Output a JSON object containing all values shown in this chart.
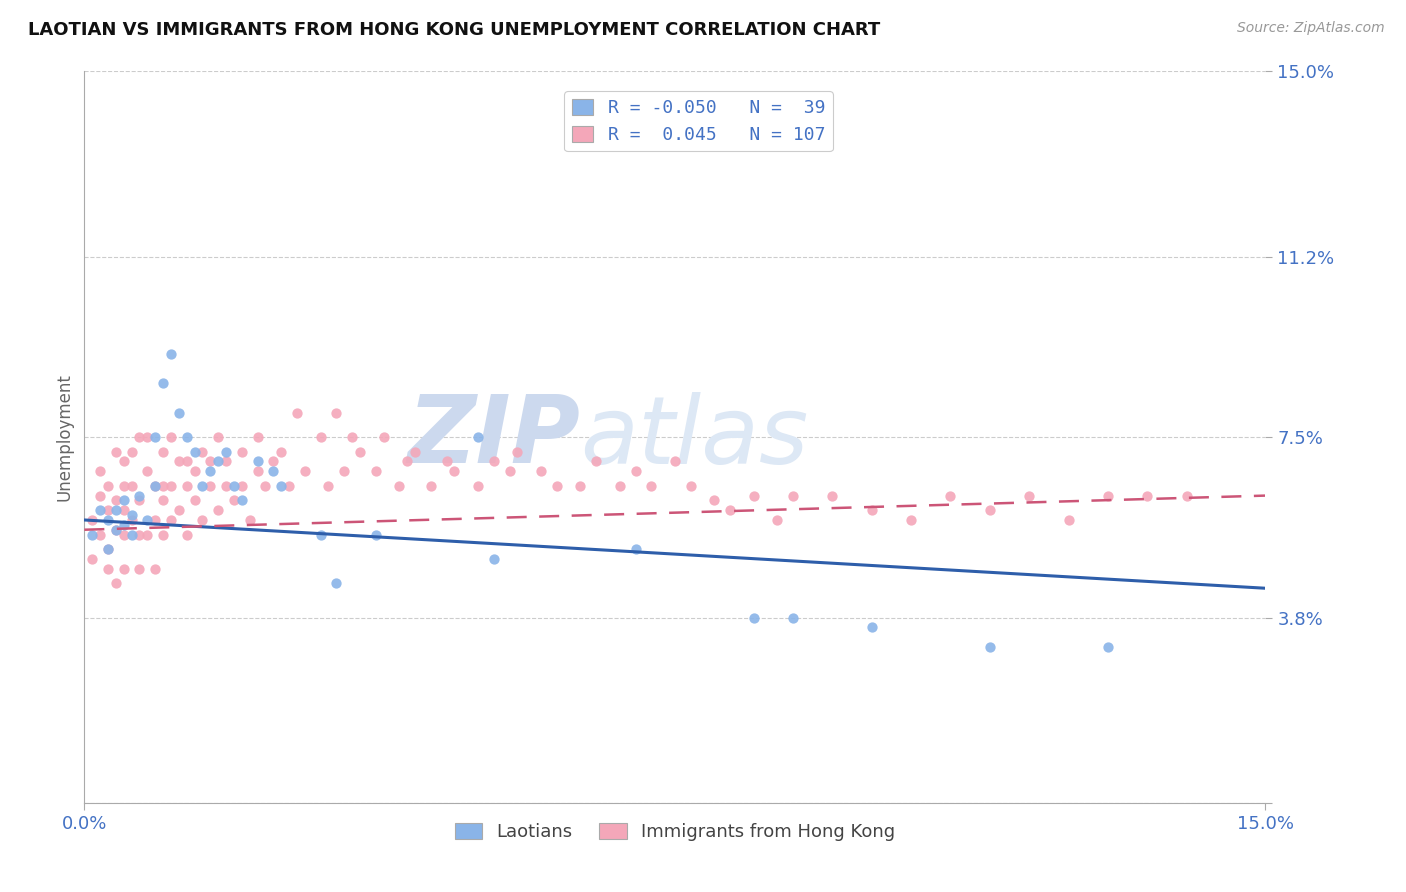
{
  "title": "LAOTIAN VS IMMIGRANTS FROM HONG KONG UNEMPLOYMENT CORRELATION CHART",
  "source_text": "Source: ZipAtlas.com",
  "ylabel": "Unemployment",
  "xmin": 0.0,
  "xmax": 0.15,
  "ymin": 0.0,
  "ymax": 0.15,
  "yticks": [
    0.0,
    0.038,
    0.075,
    0.112,
    0.15
  ],
  "ytick_labels": [
    "",
    "3.8%",
    "7.5%",
    "11.2%",
    "15.0%"
  ],
  "xtick_labels": [
    "0.0%",
    "15.0%"
  ],
  "xticks": [
    0.0,
    0.15
  ],
  "legend_blue_r": "R = -0.050",
  "legend_blue_n": "N =  39",
  "legend_pink_r": "R =  0.045",
  "legend_pink_n": "N = 107",
  "blue_scatter_color": "#8ab4e8",
  "pink_scatter_color": "#f4a7b9",
  "blue_line_color": "#2e5eaa",
  "pink_line_color": "#cc5577",
  "watermark_zip": "ZIP",
  "watermark_atlas": "atlas",
  "watermark_color": "#ccd9ee",
  "background_color": "#ffffff",
  "grid_color": "#cccccc",
  "legend_label1": "Laotians",
  "legend_label2": "Immigrants from Hong Kong",
  "tick_color": "#4472c4",
  "blue_trend_x0": 0.0,
  "blue_trend_y0": 0.058,
  "blue_trend_x1": 0.15,
  "blue_trend_y1": 0.044,
  "pink_trend_x0": 0.0,
  "pink_trend_y0": 0.056,
  "pink_trend_x1": 0.15,
  "pink_trend_y1": 0.063,
  "blue_scatter_x": [
    0.001,
    0.002,
    0.003,
    0.003,
    0.004,
    0.004,
    0.005,
    0.005,
    0.006,
    0.006,
    0.007,
    0.008,
    0.009,
    0.009,
    0.01,
    0.011,
    0.012,
    0.013,
    0.014,
    0.015,
    0.016,
    0.017,
    0.018,
    0.019,
    0.02,
    0.022,
    0.024,
    0.025,
    0.03,
    0.032,
    0.037,
    0.05,
    0.052,
    0.07,
    0.085,
    0.09,
    0.1,
    0.115,
    0.13
  ],
  "blue_scatter_y": [
    0.055,
    0.06,
    0.052,
    0.058,
    0.056,
    0.06,
    0.057,
    0.062,
    0.059,
    0.055,
    0.063,
    0.058,
    0.075,
    0.065,
    0.086,
    0.092,
    0.08,
    0.075,
    0.072,
    0.065,
    0.068,
    0.07,
    0.072,
    0.065,
    0.062,
    0.07,
    0.068,
    0.065,
    0.055,
    0.045,
    0.055,
    0.075,
    0.05,
    0.052,
    0.038,
    0.038,
    0.036,
    0.032,
    0.032
  ],
  "pink_scatter_x": [
    0.001,
    0.001,
    0.002,
    0.002,
    0.002,
    0.003,
    0.003,
    0.003,
    0.003,
    0.004,
    0.004,
    0.004,
    0.004,
    0.005,
    0.005,
    0.005,
    0.005,
    0.005,
    0.006,
    0.006,
    0.006,
    0.007,
    0.007,
    0.007,
    0.007,
    0.008,
    0.008,
    0.008,
    0.009,
    0.009,
    0.009,
    0.01,
    0.01,
    0.01,
    0.01,
    0.011,
    0.011,
    0.011,
    0.012,
    0.012,
    0.013,
    0.013,
    0.013,
    0.014,
    0.014,
    0.015,
    0.015,
    0.016,
    0.016,
    0.017,
    0.017,
    0.018,
    0.018,
    0.019,
    0.02,
    0.02,
    0.021,
    0.022,
    0.022,
    0.023,
    0.024,
    0.025,
    0.026,
    0.027,
    0.028,
    0.03,
    0.031,
    0.032,
    0.033,
    0.034,
    0.035,
    0.037,
    0.038,
    0.04,
    0.041,
    0.042,
    0.044,
    0.046,
    0.047,
    0.05,
    0.052,
    0.054,
    0.055,
    0.058,
    0.06,
    0.063,
    0.065,
    0.068,
    0.07,
    0.072,
    0.075,
    0.077,
    0.08,
    0.082,
    0.085,
    0.088,
    0.09,
    0.095,
    0.1,
    0.105,
    0.11,
    0.115,
    0.12,
    0.125,
    0.13,
    0.135,
    0.14
  ],
  "pink_scatter_y": [
    0.058,
    0.05,
    0.063,
    0.055,
    0.068,
    0.052,
    0.06,
    0.065,
    0.048,
    0.072,
    0.056,
    0.062,
    0.045,
    0.07,
    0.06,
    0.055,
    0.065,
    0.048,
    0.072,
    0.058,
    0.065,
    0.075,
    0.055,
    0.062,
    0.048,
    0.068,
    0.055,
    0.075,
    0.065,
    0.058,
    0.048,
    0.072,
    0.062,
    0.055,
    0.065,
    0.075,
    0.058,
    0.065,
    0.07,
    0.06,
    0.065,
    0.07,
    0.055,
    0.068,
    0.062,
    0.072,
    0.058,
    0.065,
    0.07,
    0.075,
    0.06,
    0.065,
    0.07,
    0.062,
    0.072,
    0.065,
    0.058,
    0.075,
    0.068,
    0.065,
    0.07,
    0.072,
    0.065,
    0.08,
    0.068,
    0.075,
    0.065,
    0.08,
    0.068,
    0.075,
    0.072,
    0.068,
    0.075,
    0.065,
    0.07,
    0.072,
    0.065,
    0.07,
    0.068,
    0.065,
    0.07,
    0.068,
    0.072,
    0.068,
    0.065,
    0.065,
    0.07,
    0.065,
    0.068,
    0.065,
    0.07,
    0.065,
    0.062,
    0.06,
    0.063,
    0.058,
    0.063,
    0.063,
    0.06,
    0.058,
    0.063,
    0.06,
    0.063,
    0.058,
    0.063,
    0.063,
    0.063
  ]
}
